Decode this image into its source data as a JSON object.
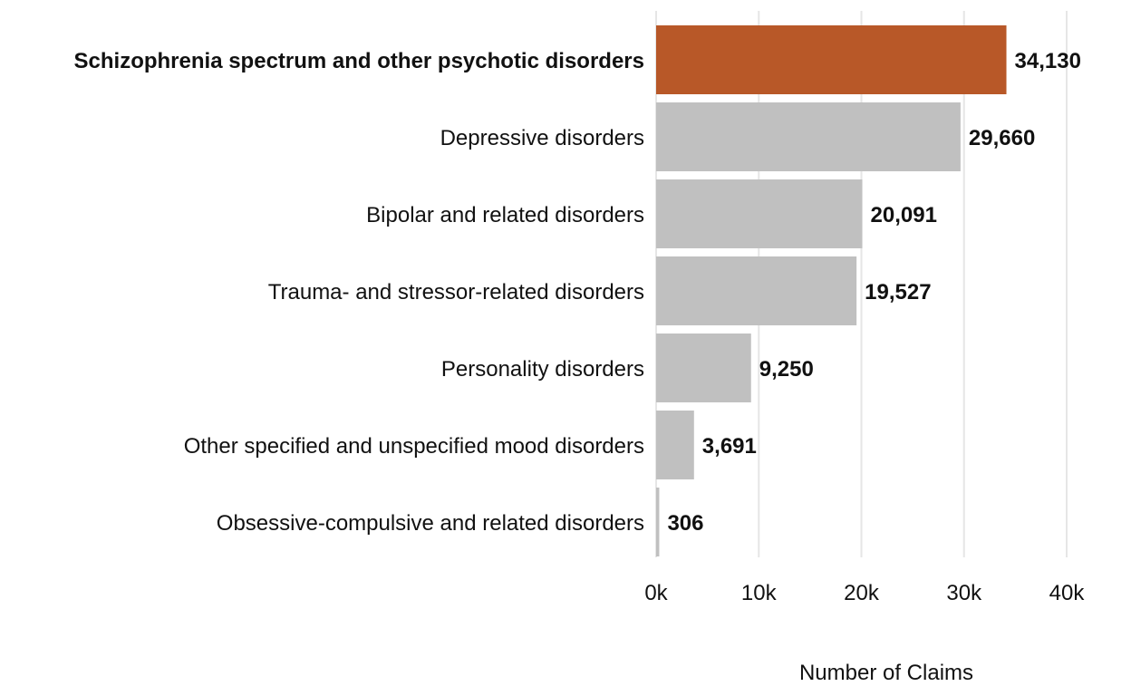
{
  "chart_data": {
    "type": "bar",
    "orientation": "horizontal",
    "categories": [
      "Schizophrenia spectrum and other psychotic disorders",
      "Depressive disorders",
      "Bipolar and related disorders",
      "Trauma- and stressor-related disorders",
      "Personality disorders",
      "Other specified and unspecified mood disorders",
      "Obsessive-compulsive and related disorders"
    ],
    "values": [
      34130,
      29660,
      20091,
      19527,
      9250,
      3691,
      306
    ],
    "value_labels": [
      "34,130",
      "29,660",
      "20,091",
      "19,527",
      "9,250",
      "3,691",
      "306"
    ],
    "highlight_index": 0,
    "xlabel": "Number of Claims",
    "ylabel": "",
    "xlim": [
      0,
      40000
    ],
    "ticks": [
      0,
      10000,
      20000,
      30000,
      40000
    ],
    "tick_labels": [
      "0k",
      "10k",
      "20k",
      "30k",
      "40k"
    ],
    "grid": "vertical",
    "colors": {
      "highlight": "#b85828",
      "default": "#c0c0c0",
      "grid": "#e6e6e6",
      "text": "#111111"
    }
  }
}
